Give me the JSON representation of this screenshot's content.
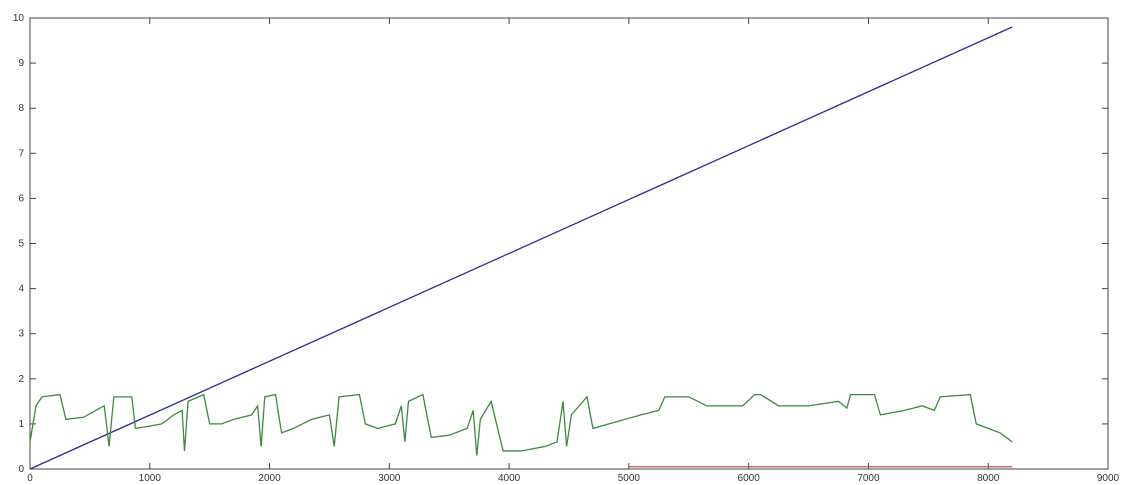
{
  "chart_data": {
    "type": "line",
    "xlim": [
      0,
      9000
    ],
    "xticks": [
      0,
      1000,
      2000,
      3000,
      4000,
      5000,
      6000,
      7000,
      8000,
      9000
    ],
    "ylim": [
      0,
      10
    ],
    "yticks": [
      0,
      1,
      2,
      3,
      4,
      5,
      6,
      7,
      8,
      9,
      10
    ],
    "grid": false,
    "series": [
      {
        "color": "#2a2a9a",
        "x": [
          0,
          8200
        ],
        "values": [
          0,
          9.8
        ]
      },
      {
        "color": "#3d8a3d",
        "x": [
          0,
          50,
          100,
          250,
          300,
          450,
          550,
          620,
          660,
          700,
          850,
          880,
          1000,
          1100,
          1200,
          1270,
          1290,
          1320,
          1450,
          1500,
          1600,
          1700,
          1850,
          1900,
          1930,
          1960,
          2050,
          2100,
          2200,
          2350,
          2500,
          2540,
          2580,
          2750,
          2800,
          2900,
          3050,
          3100,
          3130,
          3160,
          3280,
          3350,
          3500,
          3650,
          3700,
          3730,
          3760,
          3850,
          3950,
          4100,
          4300,
          4400,
          4450,
          4480,
          4520,
          4650,
          4700,
          4900,
          5100,
          5250,
          5300,
          5500,
          5650,
          5950,
          6050,
          6100,
          6250,
          6500,
          6750,
          6820,
          6850,
          7050,
          7100,
          7300,
          7450,
          7550,
          7600,
          7850,
          7900,
          8000,
          8100,
          8200
        ],
        "values": [
          0.6,
          1.4,
          1.6,
          1.65,
          1.1,
          1.15,
          1.3,
          1.4,
          0.5,
          1.6,
          1.6,
          0.9,
          0.95,
          1.0,
          1.2,
          1.3,
          0.4,
          1.5,
          1.65,
          1.0,
          1.0,
          1.1,
          1.2,
          1.4,
          0.5,
          1.6,
          1.65,
          0.8,
          0.9,
          1.1,
          1.2,
          0.5,
          1.6,
          1.65,
          1.0,
          0.9,
          1.0,
          1.4,
          0.6,
          1.5,
          1.65,
          0.7,
          0.75,
          0.9,
          1.3,
          0.3,
          1.1,
          1.5,
          0.4,
          0.4,
          0.5,
          0.6,
          1.5,
          0.5,
          1.2,
          1.6,
          0.9,
          1.05,
          1.2,
          1.3,
          1.6,
          1.6,
          1.4,
          1.4,
          1.65,
          1.65,
          1.4,
          1.4,
          1.5,
          1.35,
          1.65,
          1.65,
          1.2,
          1.3,
          1.4,
          1.3,
          1.6,
          1.65,
          1.0,
          0.9,
          0.8,
          0.6
        ]
      },
      {
        "color": "#c0504d",
        "x": [
          5000,
          8200
        ],
        "values": [
          0.05,
          0.05
        ]
      }
    ]
  }
}
